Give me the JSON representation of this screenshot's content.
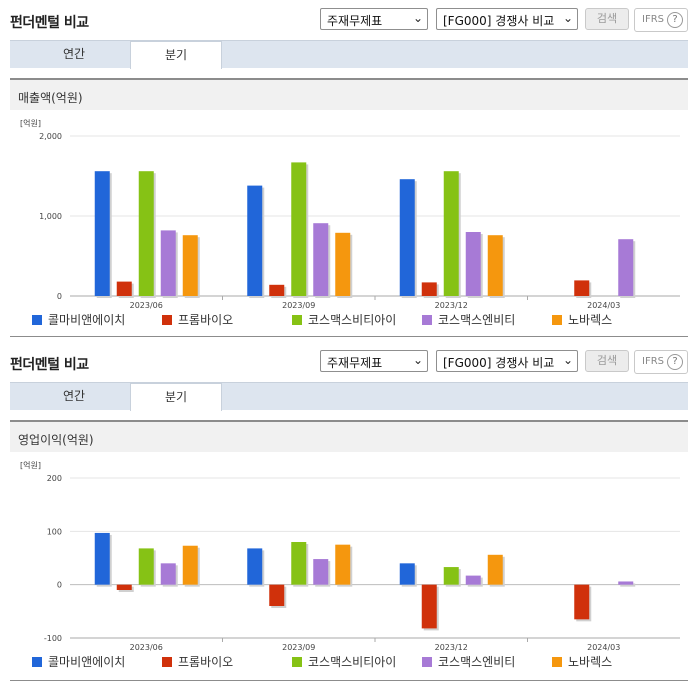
{
  "panels": [
    {
      "title": "펀더멘털 비교",
      "select_statement": "주재무제표",
      "select_compare": "[FG000] 경쟁사 비교",
      "search_label": "검색",
      "ifrs_label": "IFRS",
      "help_glyph": "?",
      "tabs": [
        {
          "label": "연간",
          "active": false
        },
        {
          "label": "분기",
          "active": true
        }
      ],
      "metric_label": "매출액(억원)",
      "unit_label": "[억원]"
    },
    {
      "title": "펀더멘털 비교",
      "select_statement": "주재무제표",
      "select_compare": "[FG000] 경쟁사 비교",
      "search_label": "검색",
      "ifrs_label": "IFRS",
      "help_glyph": "?",
      "tabs": [
        {
          "label": "연간",
          "active": false
        },
        {
          "label": "분기",
          "active": true
        }
      ],
      "metric_label": "영업이익(억원)",
      "unit_label": "[억원]"
    }
  ],
  "legend_colors": [
    "#2166d9",
    "#d0310b",
    "#86c215",
    "#a77ad6",
    "#f5970e"
  ],
  "chart_data": [
    {
      "type": "bar",
      "categories": [
        "2023/06",
        "2023/09",
        "2023/12",
        "2024/03"
      ],
      "series": [
        {
          "name": "콜마비앤에이치",
          "values": [
            1560,
            1380,
            1460,
            null
          ]
        },
        {
          "name": "프롬바이오",
          "values": [
            180,
            140,
            170,
            195
          ]
        },
        {
          "name": "코스맥스비티아이",
          "values": [
            1560,
            1670,
            1560,
            null
          ]
        },
        {
          "name": "코스맥스엔비티",
          "values": [
            820,
            910,
            800,
            710
          ]
        },
        {
          "name": "노바렉스",
          "values": [
            760,
            790,
            760,
            null
          ]
        }
      ],
      "ylim": [
        0,
        2000
      ],
      "yticks": [
        0,
        1000,
        2000
      ],
      "ytick_labels": [
        "0",
        "1,000",
        "2,000"
      ],
      "grid": true,
      "legend_position": "bottom"
    },
    {
      "type": "bar",
      "categories": [
        "2023/06",
        "2023/09",
        "2023/12",
        "2024/03"
      ],
      "series": [
        {
          "name": "콜마비앤에이치",
          "values": [
            97,
            68,
            40,
            null
          ]
        },
        {
          "name": "프롬바이오",
          "values": [
            -10,
            -40,
            -82,
            -65
          ]
        },
        {
          "name": "코스맥스비티아이",
          "values": [
            68,
            80,
            33,
            null
          ]
        },
        {
          "name": "코스맥스엔비티",
          "values": [
            40,
            48,
            17,
            6
          ]
        },
        {
          "name": "노바렉스",
          "values": [
            73,
            75,
            56,
            null
          ]
        }
      ],
      "ylim": [
        -100,
        200
      ],
      "yticks": [
        -100,
        0,
        100,
        200
      ],
      "ytick_labels": [
        "-100",
        "0",
        "100",
        "200"
      ],
      "grid": true,
      "legend_position": "bottom"
    }
  ]
}
